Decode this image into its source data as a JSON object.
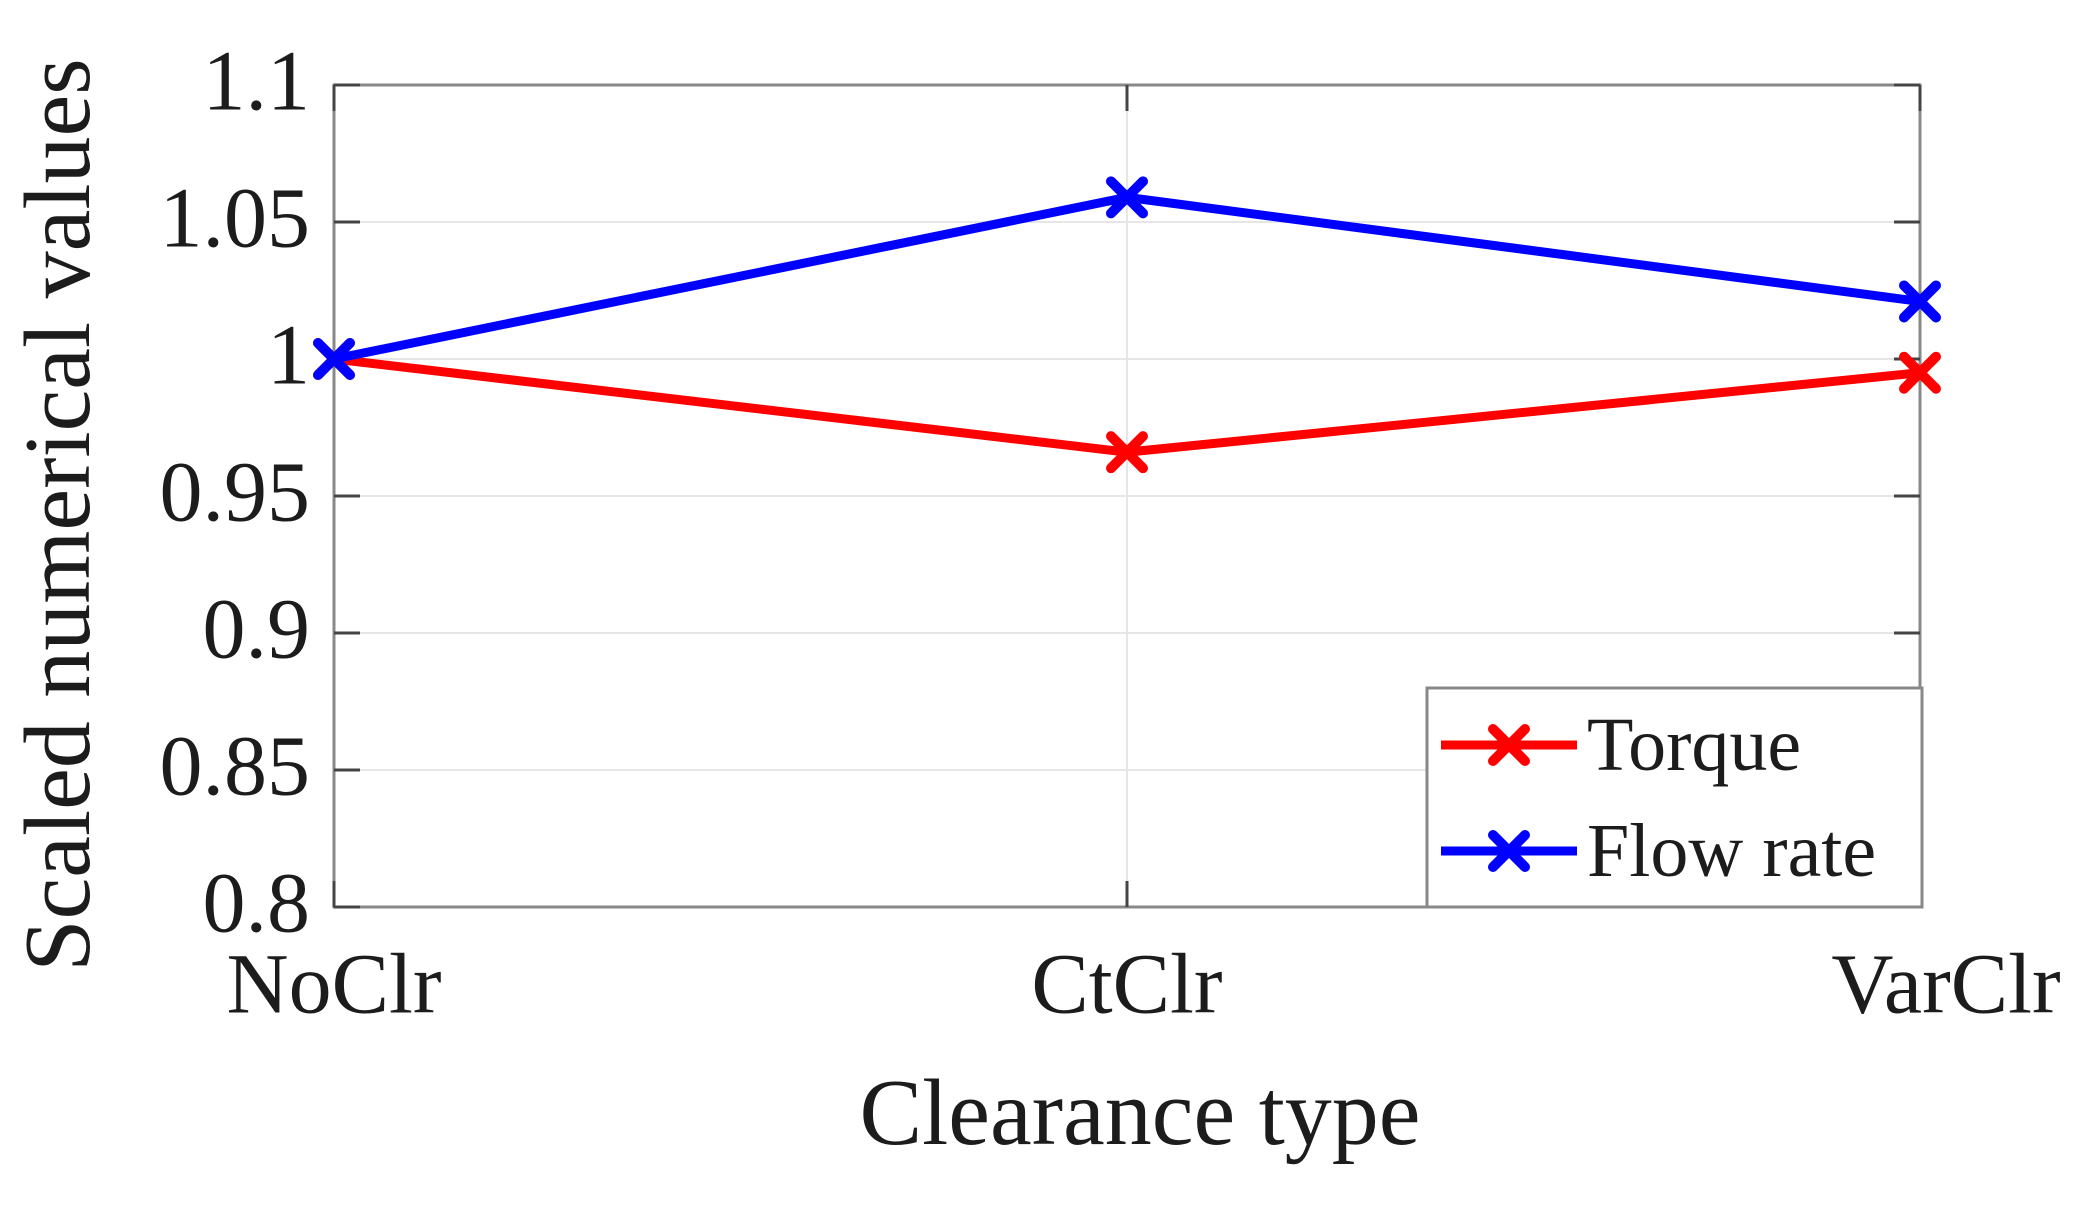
{
  "figure": {
    "background": "#ffffff",
    "text_color": "#1c1c1c",
    "axis_frame_color": "#888888",
    "tick_mark_color": "#444444",
    "grid_color": "#e6e6e6"
  },
  "chart_data": {
    "type": "line",
    "title": "",
    "xlabel": "Clearance type",
    "ylabel": "Scaled numerical values",
    "categories": [
      "NoClr",
      "CtClr",
      "VarClr"
    ],
    "series": [
      {
        "name": "Torque",
        "color": "#ff0000",
        "marker": "x",
        "values": [
          1.0,
          0.966,
          0.995
        ]
      },
      {
        "name": "Flow rate",
        "color": "#0000ff",
        "marker": "x",
        "values": [
          1.0,
          1.059,
          1.021
        ]
      }
    ],
    "ylim": [
      0.8,
      1.1
    ],
    "yticks": [
      1.1,
      1.05,
      1.0,
      0.95,
      0.9,
      0.85,
      0.8
    ],
    "ytick_labels": [
      "1.1",
      "1.05",
      "1",
      "0.95",
      "0.9",
      "0.85",
      "0.8"
    ],
    "grid": true,
    "legend": {
      "position": "bottom-right",
      "border": true,
      "entries": [
        "Torque",
        "Flow rate"
      ]
    }
  }
}
